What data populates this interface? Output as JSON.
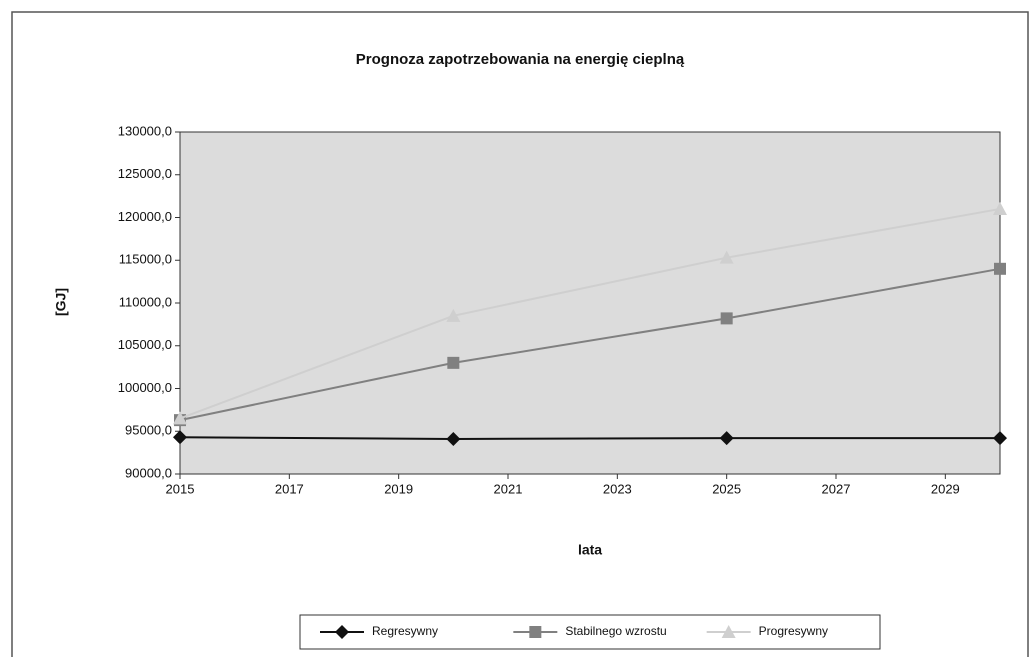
{
  "chart_data": {
    "type": "line",
    "title": "Prognoza zapotrzebowania na energię cieplną",
    "x_label": "lata",
    "y_label": "[GJ]",
    "x": [
      2015,
      2020,
      2025,
      2030
    ],
    "series": [
      {
        "name": "Regresywny",
        "color": "#111111",
        "marker": "diamond",
        "values": [
          94300,
          94100,
          94200,
          94200
        ]
      },
      {
        "name": "Stabilnego wzrostu",
        "color": "#808080",
        "marker": "square",
        "values": [
          96300,
          103000,
          108200,
          114000
        ]
      },
      {
        "name": "Progresywny",
        "color": "#cfcfcf",
        "marker": "triangle",
        "values": [
          96500,
          108500,
          115300,
          121000
        ]
      }
    ],
    "xlim": [
      2015,
      2030
    ],
    "xticks": [
      2015,
      2017,
      2019,
      2021,
      2023,
      2025,
      2027,
      2029
    ],
    "ylim": [
      90000,
      130000
    ],
    "yticks": [
      {
        "value": 90000,
        "label": "90000,0"
      },
      {
        "value": 95000,
        "label": "95000,0"
      },
      {
        "value": 100000,
        "label": "100000,0"
      },
      {
        "value": 105000,
        "label": "105000,0"
      },
      {
        "value": 110000,
        "label": "110000,0"
      },
      {
        "value": 115000,
        "label": "115000,0"
      },
      {
        "value": 120000,
        "label": "120000,0"
      },
      {
        "value": 125000,
        "label": "125000,0"
      },
      {
        "value": 130000,
        "label": "130000,0"
      }
    ],
    "legend": "bottom"
  }
}
